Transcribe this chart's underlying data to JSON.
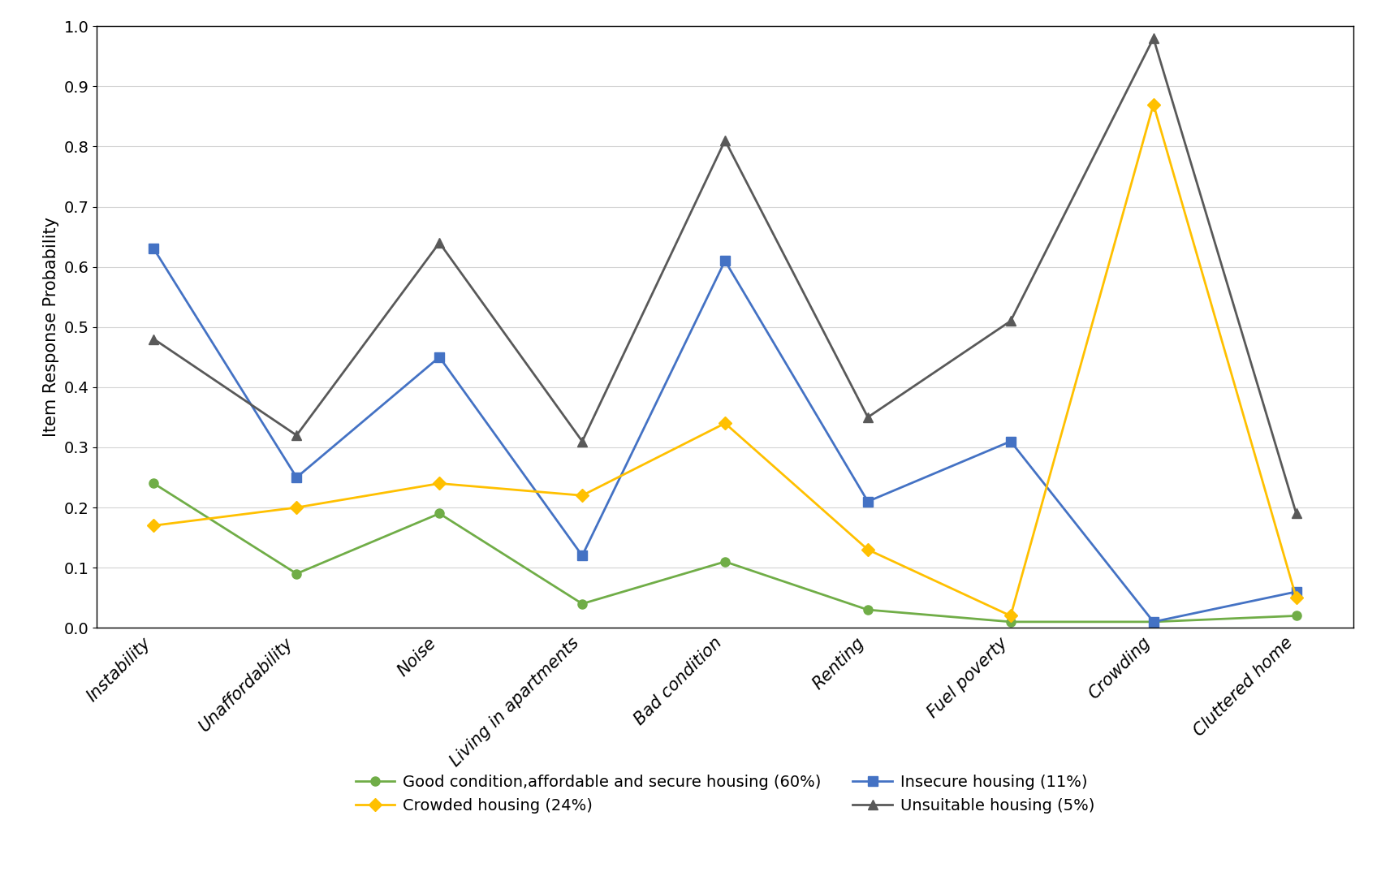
{
  "categories": [
    "Instability",
    "Unaffordability",
    "Noise",
    "Living in apartments",
    "Bad condition",
    "Renting",
    "Fuel poverty",
    "Crowding",
    "Cluttered home"
  ],
  "series": [
    {
      "label": "Good condition,affordable and secure housing (60%)",
      "color": "#70ad47",
      "marker": "o",
      "values": [
        0.24,
        0.09,
        0.19,
        0.04,
        0.11,
        0.03,
        0.01,
        0.01,
        0.02
      ]
    },
    {
      "label": "Insecure housing (11%)",
      "color": "#4472c4",
      "marker": "s",
      "values": [
        0.63,
        0.25,
        0.45,
        0.12,
        0.61,
        0.21,
        0.31,
        0.01,
        0.06
      ]
    },
    {
      "label": "Crowded housing (24%)",
      "color": "#ffc000",
      "marker": "D",
      "values": [
        0.17,
        0.2,
        0.24,
        0.22,
        0.34,
        0.13,
        0.02,
        0.87,
        0.05
      ]
    },
    {
      "label": "Unsuitable housing (5%)",
      "color": "#595959",
      "marker": "^",
      "values": [
        0.48,
        0.32,
        0.64,
        0.31,
        0.81,
        0.35,
        0.51,
        0.98,
        0.19
      ]
    }
  ],
  "ylabel": "Item Response Probability",
  "ylim": [
    0,
    1
  ],
  "yticks": [
    0.0,
    0.1,
    0.2,
    0.3,
    0.4,
    0.5,
    0.6,
    0.7,
    0.8,
    0.9,
    1.0
  ],
  "legend_ncol": 2,
  "background_color": "#ffffff",
  "grid_color": "#d3d3d3",
  "linewidth": 2.0,
  "markersize": 8
}
